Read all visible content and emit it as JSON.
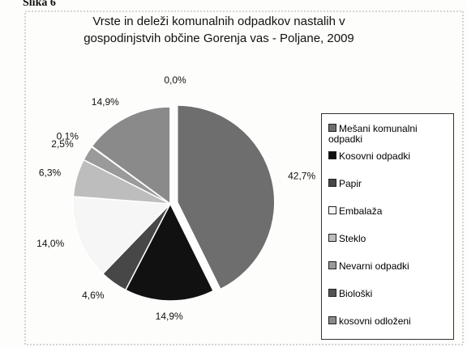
{
  "chart_data": {
    "type": "pie",
    "annotation": "Slika 6",
    "title": "Vrste in deleži komunalnih odpadkov nastalih v gospodinjstvih občine Gorenja vas - Poljane, 2009",
    "categories": [
      "Mešani komunalni odpadki",
      "Kosovni odpadki",
      "Papir",
      "Embalaža",
      "Steklo",
      "Nevarni odpadki",
      "Biološki",
      "kosovni odloženi",
      null
    ],
    "values": [
      42.7,
      14.9,
      4.6,
      14.0,
      6.3,
      2.5,
      0.1,
      14.9,
      0.0
    ],
    "value_labels": [
      "42,7%",
      "14,9%",
      "4,6%",
      "14,0%",
      "6,3%",
      "2,5%",
      "0,1%",
      "14,9%",
      "0,0%"
    ],
    "colors": [
      "#6e6e6e",
      "#111111",
      "#474747",
      "#f6f6f6",
      "#bdbdbd",
      "#9a9a9a",
      "#555555",
      "#8a8a8a",
      "#cccccc"
    ],
    "legend": "right"
  }
}
